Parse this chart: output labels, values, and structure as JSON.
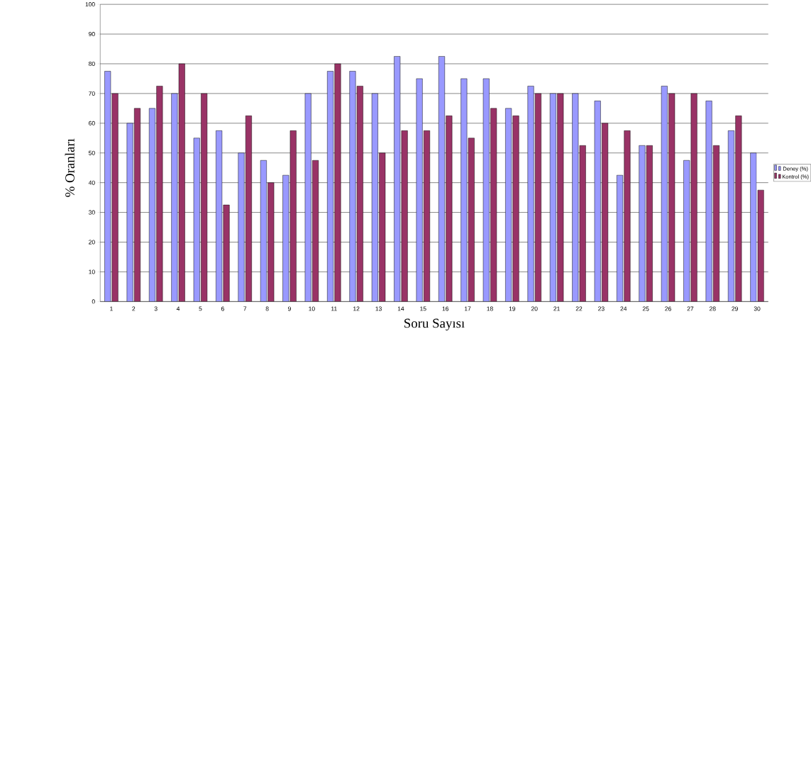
{
  "chart_data": {
    "type": "bar",
    "xlabel": "Soru Sayısı",
    "ylabel": "%  Oranları",
    "categories": [
      "1",
      "2",
      "3",
      "4",
      "5",
      "6",
      "7",
      "8",
      "9",
      "10",
      "11",
      "12",
      "13",
      "14",
      "15",
      "16",
      "17",
      "18",
      "19",
      "20",
      "21",
      "22",
      "23",
      "24",
      "25",
      "26",
      "27",
      "28",
      "29",
      "30"
    ],
    "series": [
      {
        "name": "Deney  (%)",
        "color": "#9999ff",
        "values": [
          77.5,
          60,
          65,
          70,
          55,
          57.5,
          50,
          47.5,
          42.5,
          70,
          77.5,
          77.5,
          70,
          82.5,
          75,
          82.5,
          75,
          75,
          65,
          72.5,
          70,
          70,
          67.5,
          42.5,
          52.5,
          72.5,
          47.5,
          67.5,
          57.5,
          50
        ]
      },
      {
        "name": "Kontrol (%)",
        "color": "#993366",
        "values": [
          70,
          65,
          72.5,
          80,
          70,
          32.5,
          62.5,
          40,
          57.5,
          47.5,
          80,
          72.5,
          50,
          57.5,
          57.5,
          62.5,
          55,
          65,
          62.5,
          70,
          70,
          52.5,
          60,
          57.5,
          52.5,
          70,
          70,
          52.5,
          62.5,
          37.5
        ]
      }
    ],
    "ylim": [
      0,
      100
    ],
    "yticks": [
      0,
      10,
      20,
      30,
      40,
      50,
      60,
      70,
      80,
      90,
      100
    ],
    "grid": "y",
    "legend": "right"
  }
}
